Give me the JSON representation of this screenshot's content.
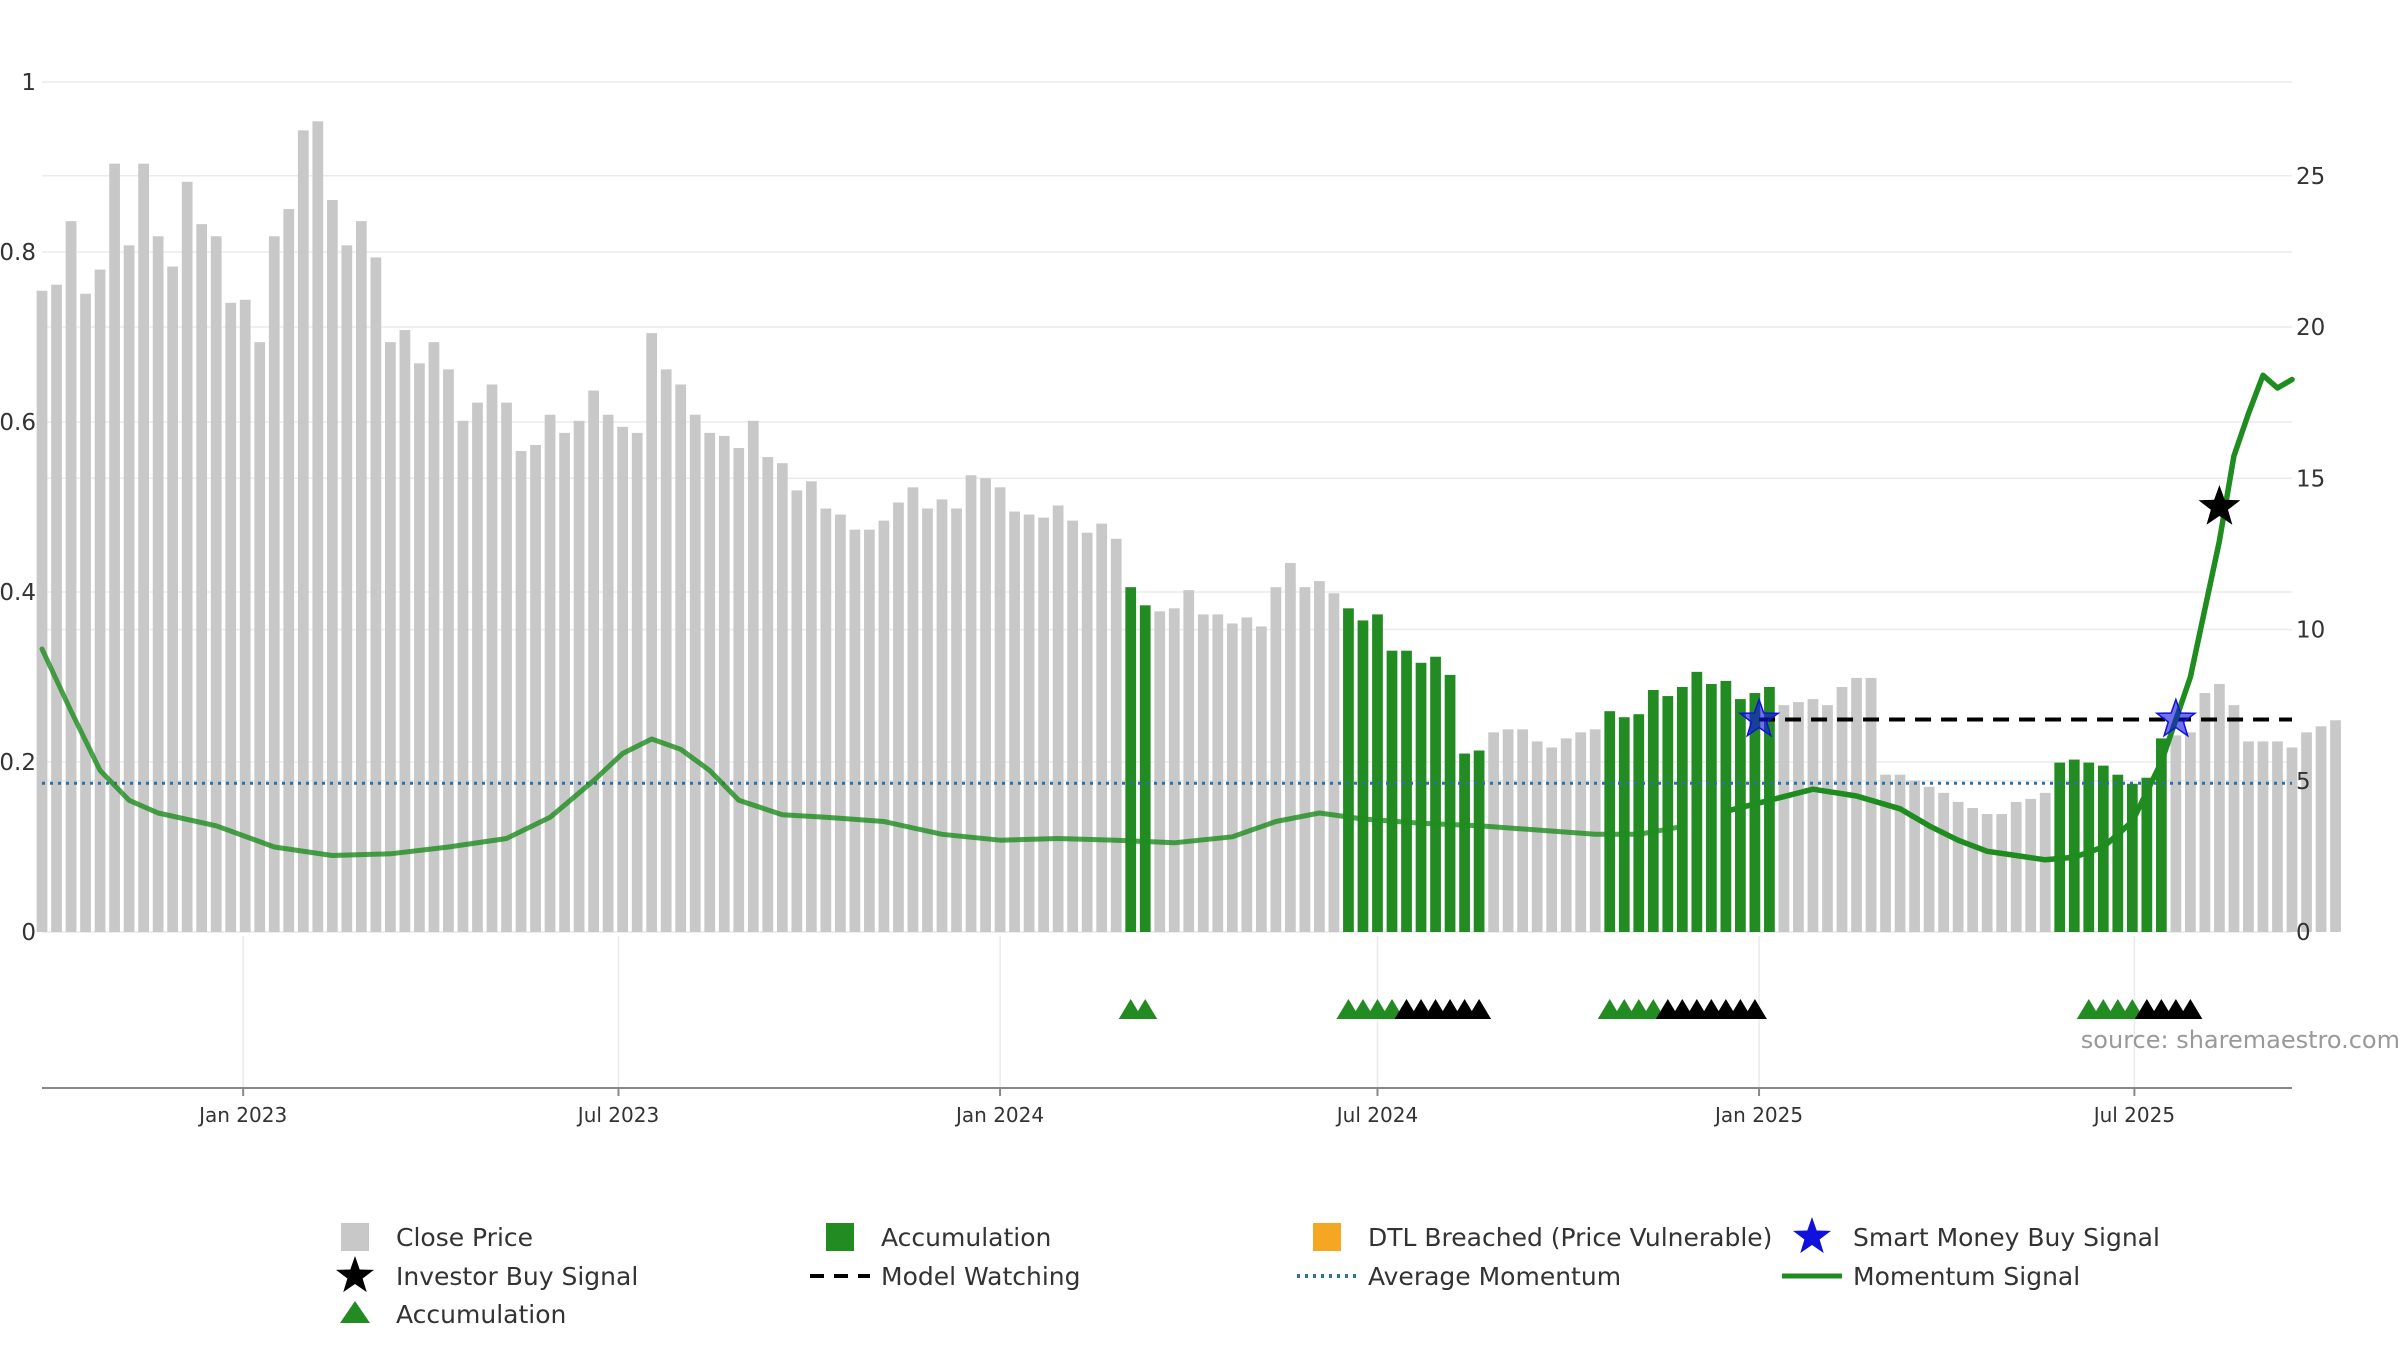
{
  "colors": {
    "close_price": "#c8c8c8",
    "accumulation": "#228b22",
    "dtl_breached": "#f5a623",
    "momentum": "#1e8c1e",
    "avg_momentum": "#2e6fa8",
    "model_watching": "#000000",
    "smart_money": "#1111dd",
    "investor_buy": "#000000",
    "grid": "#ebebeb",
    "axis": "#888888"
  },
  "source_text": "source: sharemaestro.com",
  "legend": [
    {
      "label": "Close Price",
      "icon": "square-icon",
      "color": "#c8c8c8"
    },
    {
      "label": "Accumulation",
      "icon": "square-icon",
      "color": "#228b22"
    },
    {
      "label": "DTL Breached (Price Vulnerable)",
      "icon": "square-icon",
      "color": "#f5a623"
    },
    {
      "label": "Smart Money Buy Signal",
      "icon": "star-icon",
      "color": "#1111dd"
    },
    {
      "label": "Investor Buy Signal",
      "icon": "star-icon",
      "color": "#000000"
    },
    {
      "label": "Model Watching",
      "icon": "dashed-line-icon",
      "color": "#000000"
    },
    {
      "label": "Average Momentum",
      "icon": "dotted-line-icon",
      "color": "#2e6fa8"
    },
    {
      "label": "Momentum Signal",
      "icon": "line-icon",
      "color": "#1e8c1e"
    },
    {
      "label": "Accumulation",
      "icon": "triangle-icon",
      "color": "#228b22"
    }
  ],
  "chart_data": {
    "type": "bar",
    "title": "",
    "xlabel": "",
    "ylabel": "",
    "grid": true,
    "legend_position": "bottom",
    "x_range": [
      "2022-09-26",
      "2025-09-15"
    ],
    "x_ticks": [
      {
        "date": "2023-01-01",
        "label": "Jan 2023"
      },
      {
        "date": "2023-07-01",
        "label": "Jul 2023"
      },
      {
        "date": "2024-01-01",
        "label": "Jan 2024"
      },
      {
        "date": "2024-07-01",
        "label": "Jul 2024"
      },
      {
        "date": "2025-01-01",
        "label": "Jan 2025"
      },
      {
        "date": "2025-07-01",
        "label": "Jul 2025"
      }
    ],
    "y_left": {
      "range": [
        0,
        1
      ],
      "ticks": [
        0,
        0.2,
        0.4,
        0.6,
        0.8,
        1
      ],
      "tick_labels": [
        "0",
        "0.2",
        "0.4",
        "0.6",
        "0.8",
        "1"
      ]
    },
    "y_right": {
      "range": [
        0,
        28.1
      ],
      "ticks": [
        0,
        5,
        10,
        15,
        20,
        25
      ],
      "tick_labels": [
        "0",
        "5",
        "10",
        "15",
        "20",
        "25"
      ]
    },
    "close_price_bars": {
      "name": "Close Price",
      "start_date": "2022-09-26",
      "interval_days": 7,
      "values": [
        21.2,
        21.4,
        23.5,
        21.1,
        21.9,
        25.4,
        22.7,
        25.4,
        23.0,
        22.0,
        24.8,
        23.4,
        23.0,
        20.8,
        20.9,
        19.5,
        23.0,
        23.9,
        26.5,
        26.8,
        24.2,
        22.7,
        23.5,
        22.3,
        19.5,
        19.9,
        18.8,
        19.5,
        18.6,
        16.9,
        17.5,
        18.1,
        17.5,
        15.9,
        16.1,
        17.1,
        16.5,
        16.9,
        17.9,
        17.1,
        16.7,
        16.5,
        19.8,
        18.6,
        18.1,
        17.1,
        16.5,
        16.4,
        16.0,
        16.9,
        15.7,
        15.5,
        14.6,
        14.9,
        14.0,
        13.8,
        13.3,
        13.3,
        13.6,
        14.2,
        14.7,
        14.0,
        14.3,
        14.0,
        15.1,
        15.0,
        14.7,
        13.9,
        13.8,
        13.7,
        14.1,
        13.6,
        13.2,
        13.5,
        13.0,
        11.4,
        10.8,
        10.6,
        10.7,
        11.3,
        10.5,
        10.5,
        10.2,
        10.4,
        10.1,
        11.4,
        12.2,
        11.4,
        11.6,
        11.2,
        10.7,
        10.3,
        10.5,
        9.3,
        9.3,
        8.9,
        9.1,
        8.5,
        5.9,
        6.0,
        6.6,
        6.7,
        6.7,
        6.3,
        6.1,
        6.4,
        6.6,
        6.7,
        7.3,
        7.1,
        7.2,
        8.0,
        7.8,
        8.1,
        8.6,
        8.2,
        8.3,
        7.7,
        7.9,
        8.1,
        7.5,
        7.6,
        7.7,
        7.5,
        8.1,
        8.4,
        8.4,
        5.2,
        5.2,
        5.0,
        4.8,
        4.6,
        4.3,
        4.1,
        3.9,
        3.9,
        4.3,
        4.4,
        4.6,
        5.6,
        5.7,
        5.6,
        5.5,
        5.2,
        4.9,
        5.1,
        6.4,
        6.5,
        6.6,
        7.9,
        8.2,
        7.5,
        6.3,
        6.3,
        6.3,
        6.1,
        6.6,
        6.8,
        7.0
      ],
      "accumulation_indices": [
        75,
        76,
        90,
        91,
        92,
        93,
        94,
        95,
        96,
        97,
        98,
        99,
        108,
        109,
        110,
        111,
        112,
        113,
        114,
        115,
        116,
        117,
        118,
        119,
        139,
        140,
        141,
        142,
        143,
        144,
        145,
        146
      ]
    },
    "momentum_signal": {
      "name": "Momentum Signal",
      "points": [
        [
          "2022-09-26",
          0.333
        ],
        [
          "2022-10-10",
          0.26
        ],
        [
          "2022-10-24",
          0.19
        ],
        [
          "2022-11-07",
          0.155
        ],
        [
          "2022-11-21",
          0.14
        ],
        [
          "2022-12-19",
          0.125
        ],
        [
          "2023-01-16",
          0.1
        ],
        [
          "2023-02-13",
          0.09
        ],
        [
          "2023-03-13",
          0.092
        ],
        [
          "2023-04-10",
          0.1
        ],
        [
          "2023-05-08",
          0.11
        ],
        [
          "2023-05-29",
          0.135
        ],
        [
          "2023-06-19",
          0.178
        ],
        [
          "2023-07-03",
          0.21
        ],
        [
          "2023-07-17",
          0.227
        ],
        [
          "2023-07-31",
          0.215
        ],
        [
          "2023-08-14",
          0.19
        ],
        [
          "2023-08-28",
          0.155
        ],
        [
          "2023-09-18",
          0.138
        ],
        [
          "2023-10-09",
          0.135
        ],
        [
          "2023-11-06",
          0.13
        ],
        [
          "2023-12-04",
          0.115
        ],
        [
          "2024-01-01",
          0.108
        ],
        [
          "2024-01-29",
          0.11
        ],
        [
          "2024-02-26",
          0.108
        ],
        [
          "2024-03-25",
          0.105
        ],
        [
          "2024-04-22",
          0.112
        ],
        [
          "2024-05-13",
          0.13
        ],
        [
          "2024-06-03",
          0.14
        ],
        [
          "2024-06-24",
          0.133
        ],
        [
          "2024-07-22",
          0.128
        ],
        [
          "2024-08-19",
          0.125
        ],
        [
          "2024-09-16",
          0.12
        ],
        [
          "2024-10-14",
          0.115
        ],
        [
          "2024-11-04",
          0.115
        ],
        [
          "2024-11-25",
          0.124
        ],
        [
          "2024-12-16",
          0.142
        ],
        [
          "2025-01-06",
          0.155
        ],
        [
          "2025-01-27",
          0.168
        ],
        [
          "2025-02-17",
          0.16
        ],
        [
          "2025-03-10",
          0.145
        ],
        [
          "2025-03-24",
          0.125
        ],
        [
          "2025-04-07",
          0.108
        ],
        [
          "2025-04-21",
          0.095
        ],
        [
          "2025-05-05",
          0.09
        ],
        [
          "2025-05-19",
          0.085
        ],
        [
          "2025-06-02",
          0.088
        ],
        [
          "2025-06-16",
          0.1
        ],
        [
          "2025-06-30",
          0.13
        ],
        [
          "2025-07-14",
          0.2
        ],
        [
          "2025-07-28",
          0.3
        ],
        [
          "2025-08-11",
          0.46
        ],
        [
          "2025-08-18",
          0.56
        ],
        [
          "2025-08-25",
          0.61
        ],
        [
          "2025-09-01",
          0.655
        ],
        [
          "2025-09-08",
          0.64
        ],
        [
          "2025-09-15",
          0.65
        ]
      ]
    },
    "average_momentum": {
      "name": "Average Momentum",
      "value": 0.175
    },
    "model_watching": {
      "name": "Model Watching",
      "from": "2025-01-01",
      "to": "2025-09-15",
      "value": 0.25
    },
    "smart_money_buy_signal": {
      "name": "Smart Money Buy Signal",
      "points": [
        [
          "2025-01-01",
          0.25
        ],
        [
          "2025-07-21",
          0.25
        ]
      ]
    },
    "investor_buy_signal": {
      "name": "Investor Buy Signal",
      "points": [
        [
          "2025-08-11",
          0.5
        ]
      ]
    },
    "accumulation_markers": {
      "name": "Accumulation",
      "green": [
        "2024-03-04",
        "2024-03-11",
        "2024-06-17",
        "2024-06-24",
        "2024-07-01",
        "2024-07-08",
        "2024-10-21",
        "2024-10-28",
        "2024-11-04",
        "2024-11-11",
        "2025-06-09",
        "2025-06-16",
        "2025-06-23",
        "2025-06-30"
      ],
      "black": [
        "2024-07-15",
        "2024-07-22",
        "2024-07-29",
        "2024-08-05",
        "2024-08-12",
        "2024-08-19",
        "2024-11-18",
        "2024-11-25",
        "2024-12-02",
        "2024-12-09",
        "2024-12-16",
        "2024-12-23",
        "2024-12-30",
        "2025-07-07",
        "2025-07-14",
        "2025-07-21",
        "2025-07-28"
      ]
    }
  }
}
